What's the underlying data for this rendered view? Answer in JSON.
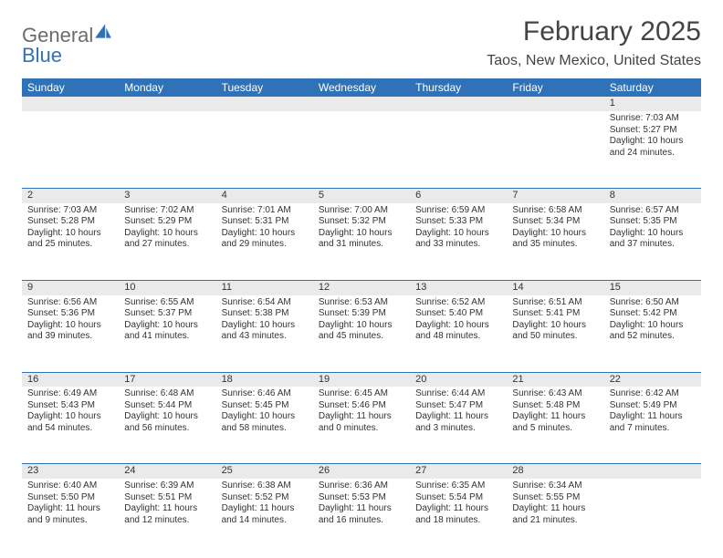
{
  "logo": {
    "word1": "General",
    "word2": "Blue"
  },
  "title": "February 2025",
  "location": "Taos, New Mexico, United States",
  "colors": {
    "header_bg": "#2f72b8",
    "header_text": "#ffffff",
    "daynum_bg": "#eaeaea",
    "text": "#333333",
    "logo_gray": "#6b6b6b",
    "logo_blue": "#2f72b8",
    "border": "#2f72b8",
    "page_bg": "#ffffff"
  },
  "typography": {
    "title_fontsize": 30,
    "location_fontsize": 16,
    "dayheader_fontsize": 12,
    "cell_fontsize": 10,
    "daynum_fontsize": 11
  },
  "day_headers": [
    "Sunday",
    "Monday",
    "Tuesday",
    "Wednesday",
    "Thursday",
    "Friday",
    "Saturday"
  ],
  "weeks": [
    [
      null,
      null,
      null,
      null,
      null,
      null,
      {
        "n": "1",
        "sunrise": "Sunrise: 7:03 AM",
        "sunset": "Sunset: 5:27 PM",
        "daylight": "Daylight: 10 hours and 24 minutes."
      }
    ],
    [
      {
        "n": "2",
        "sunrise": "Sunrise: 7:03 AM",
        "sunset": "Sunset: 5:28 PM",
        "daylight": "Daylight: 10 hours and 25 minutes."
      },
      {
        "n": "3",
        "sunrise": "Sunrise: 7:02 AM",
        "sunset": "Sunset: 5:29 PM",
        "daylight": "Daylight: 10 hours and 27 minutes."
      },
      {
        "n": "4",
        "sunrise": "Sunrise: 7:01 AM",
        "sunset": "Sunset: 5:31 PM",
        "daylight": "Daylight: 10 hours and 29 minutes."
      },
      {
        "n": "5",
        "sunrise": "Sunrise: 7:00 AM",
        "sunset": "Sunset: 5:32 PM",
        "daylight": "Daylight: 10 hours and 31 minutes."
      },
      {
        "n": "6",
        "sunrise": "Sunrise: 6:59 AM",
        "sunset": "Sunset: 5:33 PM",
        "daylight": "Daylight: 10 hours and 33 minutes."
      },
      {
        "n": "7",
        "sunrise": "Sunrise: 6:58 AM",
        "sunset": "Sunset: 5:34 PM",
        "daylight": "Daylight: 10 hours and 35 minutes."
      },
      {
        "n": "8",
        "sunrise": "Sunrise: 6:57 AM",
        "sunset": "Sunset: 5:35 PM",
        "daylight": "Daylight: 10 hours and 37 minutes."
      }
    ],
    [
      {
        "n": "9",
        "sunrise": "Sunrise: 6:56 AM",
        "sunset": "Sunset: 5:36 PM",
        "daylight": "Daylight: 10 hours and 39 minutes."
      },
      {
        "n": "10",
        "sunrise": "Sunrise: 6:55 AM",
        "sunset": "Sunset: 5:37 PM",
        "daylight": "Daylight: 10 hours and 41 minutes."
      },
      {
        "n": "11",
        "sunrise": "Sunrise: 6:54 AM",
        "sunset": "Sunset: 5:38 PM",
        "daylight": "Daylight: 10 hours and 43 minutes."
      },
      {
        "n": "12",
        "sunrise": "Sunrise: 6:53 AM",
        "sunset": "Sunset: 5:39 PM",
        "daylight": "Daylight: 10 hours and 45 minutes."
      },
      {
        "n": "13",
        "sunrise": "Sunrise: 6:52 AM",
        "sunset": "Sunset: 5:40 PM",
        "daylight": "Daylight: 10 hours and 48 minutes."
      },
      {
        "n": "14",
        "sunrise": "Sunrise: 6:51 AM",
        "sunset": "Sunset: 5:41 PM",
        "daylight": "Daylight: 10 hours and 50 minutes."
      },
      {
        "n": "15",
        "sunrise": "Sunrise: 6:50 AM",
        "sunset": "Sunset: 5:42 PM",
        "daylight": "Daylight: 10 hours and 52 minutes."
      }
    ],
    [
      {
        "n": "16",
        "sunrise": "Sunrise: 6:49 AM",
        "sunset": "Sunset: 5:43 PM",
        "daylight": "Daylight: 10 hours and 54 minutes."
      },
      {
        "n": "17",
        "sunrise": "Sunrise: 6:48 AM",
        "sunset": "Sunset: 5:44 PM",
        "daylight": "Daylight: 10 hours and 56 minutes."
      },
      {
        "n": "18",
        "sunrise": "Sunrise: 6:46 AM",
        "sunset": "Sunset: 5:45 PM",
        "daylight": "Daylight: 10 hours and 58 minutes."
      },
      {
        "n": "19",
        "sunrise": "Sunrise: 6:45 AM",
        "sunset": "Sunset: 5:46 PM",
        "daylight": "Daylight: 11 hours and 0 minutes."
      },
      {
        "n": "20",
        "sunrise": "Sunrise: 6:44 AM",
        "sunset": "Sunset: 5:47 PM",
        "daylight": "Daylight: 11 hours and 3 minutes."
      },
      {
        "n": "21",
        "sunrise": "Sunrise: 6:43 AM",
        "sunset": "Sunset: 5:48 PM",
        "daylight": "Daylight: 11 hours and 5 minutes."
      },
      {
        "n": "22",
        "sunrise": "Sunrise: 6:42 AM",
        "sunset": "Sunset: 5:49 PM",
        "daylight": "Daylight: 11 hours and 7 minutes."
      }
    ],
    [
      {
        "n": "23",
        "sunrise": "Sunrise: 6:40 AM",
        "sunset": "Sunset: 5:50 PM",
        "daylight": "Daylight: 11 hours and 9 minutes."
      },
      {
        "n": "24",
        "sunrise": "Sunrise: 6:39 AM",
        "sunset": "Sunset: 5:51 PM",
        "daylight": "Daylight: 11 hours and 12 minutes."
      },
      {
        "n": "25",
        "sunrise": "Sunrise: 6:38 AM",
        "sunset": "Sunset: 5:52 PM",
        "daylight": "Daylight: 11 hours and 14 minutes."
      },
      {
        "n": "26",
        "sunrise": "Sunrise: 6:36 AM",
        "sunset": "Sunset: 5:53 PM",
        "daylight": "Daylight: 11 hours and 16 minutes."
      },
      {
        "n": "27",
        "sunrise": "Sunrise: 6:35 AM",
        "sunset": "Sunset: 5:54 PM",
        "daylight": "Daylight: 11 hours and 18 minutes."
      },
      {
        "n": "28",
        "sunrise": "Sunrise: 6:34 AM",
        "sunset": "Sunset: 5:55 PM",
        "daylight": "Daylight: 11 hours and 21 minutes."
      },
      null
    ]
  ]
}
